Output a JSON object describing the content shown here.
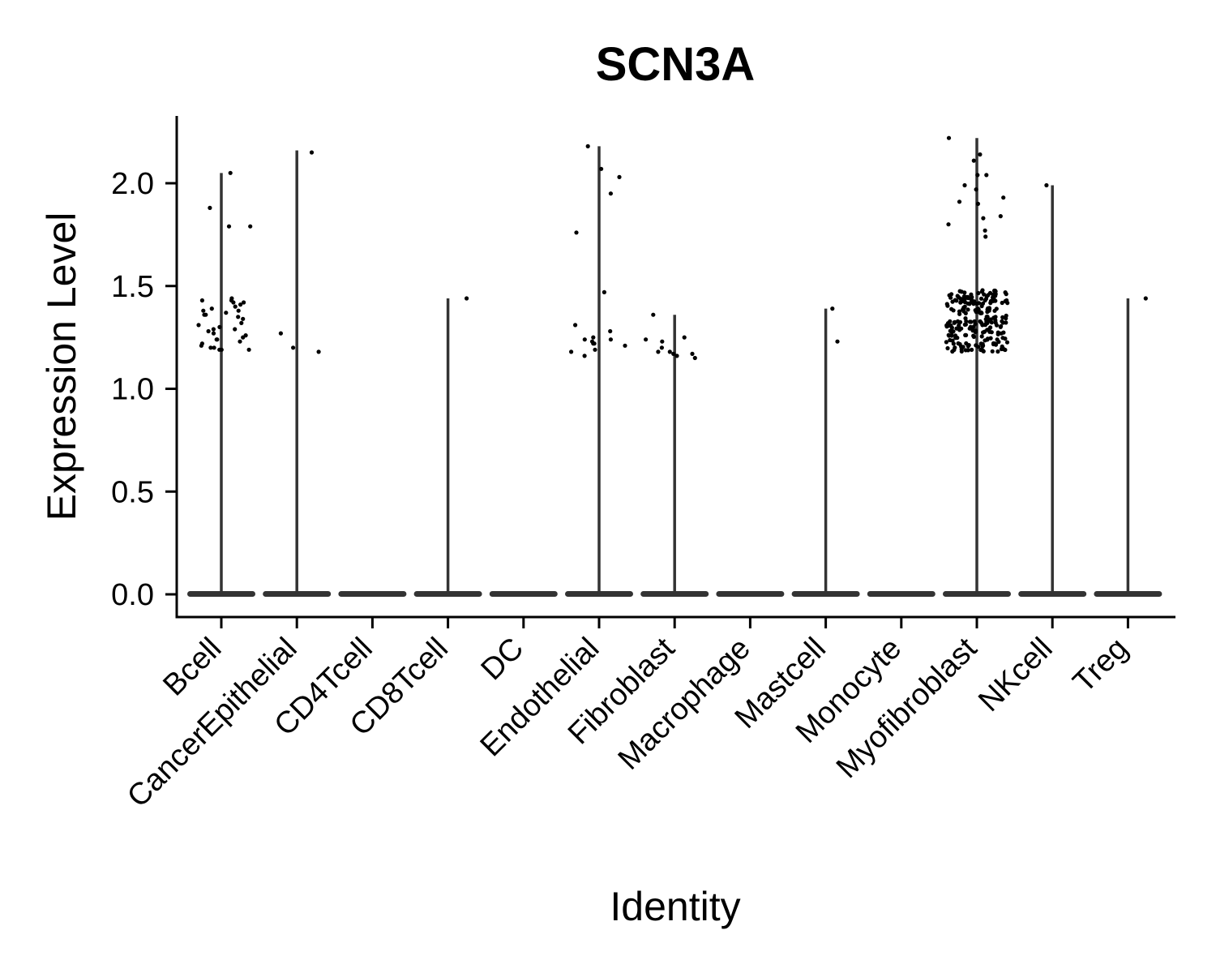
{
  "chart_data": {
    "type": "violin",
    "title": "SCN3A",
    "xlabel": "Identity",
    "ylabel": "Expression Level",
    "ylim": [
      -0.11,
      2.33
    ],
    "yticks": [
      "0.0",
      "0.5",
      "1.0",
      "1.5",
      "2.0"
    ],
    "ytick_values": [
      0.0,
      0.5,
      1.0,
      1.5,
      2.0
    ],
    "grid": false,
    "legend": "none",
    "point_color": "#000000",
    "violin_color": "#333333",
    "categories": [
      "Bcell",
      "CancerEpithelial",
      "CD4Tcell",
      "CD8Tcell",
      "DC",
      "Endothelial",
      "Fibroblast",
      "Macrophage",
      "Mastcell",
      "Monocyte",
      "Myofibroblast",
      "NKcell",
      "Treg"
    ],
    "max_values": [
      2.05,
      2.16,
      0.0,
      1.44,
      0.0,
      2.18,
      1.36,
      0.0,
      1.39,
      0.0,
      2.22,
      1.99,
      1.44
    ],
    "nonzero_points": [
      [
        2.05,
        1.88,
        1.79,
        1.79,
        1.44,
        1.43,
        1.43,
        1.42,
        1.42,
        1.41,
        1.4,
        1.39,
        1.38,
        1.38,
        1.37,
        1.36,
        1.36,
        1.35,
        1.34,
        1.32,
        1.31,
        1.3,
        1.29,
        1.29,
        1.28,
        1.27,
        1.26,
        1.25,
        1.24,
        1.24,
        1.23,
        1.22,
        1.21,
        1.2,
        1.2,
        1.19,
        1.19,
        1.19
      ],
      [
        2.15,
        1.27,
        1.2,
        1.18
      ],
      [],
      [
        1.44
      ],
      [],
      [
        2.18,
        2.07,
        2.03,
        1.95,
        1.76,
        1.47,
        1.31,
        1.28,
        1.25,
        1.24,
        1.24,
        1.23,
        1.22,
        1.22,
        1.21,
        1.19,
        1.18,
        1.16
      ],
      [
        1.36,
        1.25,
        1.24,
        1.23,
        1.2,
        1.18,
        1.18,
        1.17,
        1.17,
        1.16,
        1.15
      ],
      [],
      [
        1.39,
        1.23
      ],
      [],
      [
        2.22,
        2.14,
        2.11,
        2.04,
        2.04,
        1.99,
        1.97,
        1.93,
        1.91,
        1.9,
        1.84,
        1.83,
        1.8,
        1.77,
        1.74
      ],
      [
        1.99
      ],
      [
        1.44
      ]
    ],
    "myofibroblast_dense_cluster": {
      "count": 230,
      "min": 1.18,
      "max": 1.48
    }
  }
}
